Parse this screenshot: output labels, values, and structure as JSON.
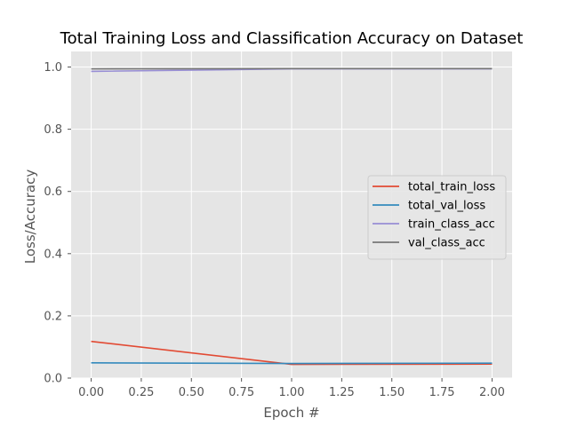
{
  "chart_data": {
    "type": "line",
    "title": "Total Training Loss and Classification Accuracy on Dataset",
    "xlabel": "Epoch #",
    "ylabel": "Loss/Accuracy",
    "xlim": [
      -0.1,
      2.1
    ],
    "ylim": [
      0.0,
      1.05
    ],
    "x_ticks": [
      "0.00",
      "0.25",
      "0.50",
      "0.75",
      "1.00",
      "1.25",
      "1.50",
      "1.75",
      "2.00"
    ],
    "y_ticks": [
      "0.0",
      "0.2",
      "0.4",
      "0.6",
      "0.8",
      "1.0"
    ],
    "x": [
      0,
      1,
      2
    ],
    "series": [
      {
        "name": "total_train_loss",
        "color": "#E24A33",
        "values": [
          0.118,
          0.044,
          0.045
        ]
      },
      {
        "name": "total_val_loss",
        "color": "#348ABD",
        "values": [
          0.049,
          0.047,
          0.048
        ]
      },
      {
        "name": "train_class_acc",
        "color": "#988ED5",
        "values": [
          0.986,
          0.994,
          0.994
        ]
      },
      {
        "name": "val_class_acc",
        "color": "#777777",
        "values": [
          0.994,
          0.995,
          0.995
        ]
      }
    ],
    "grid": true,
    "legend_position": "center-right",
    "style": "ggplot",
    "background": "#E5E5E5"
  }
}
